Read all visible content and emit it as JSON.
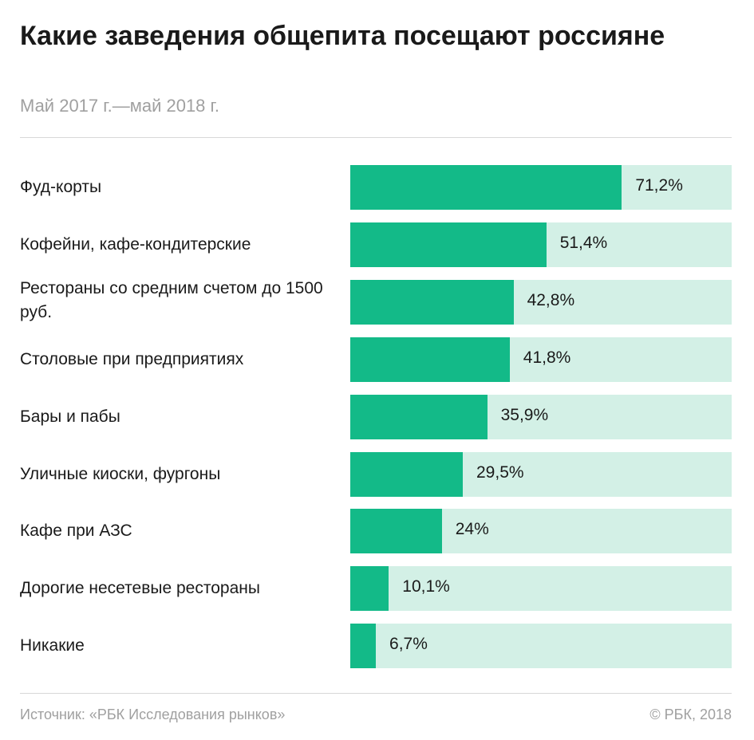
{
  "chart_data": {
    "type": "bar",
    "orientation": "horizontal",
    "title": "Какие заведения общепита посещают россияне",
    "subtitle": "Май 2017 г.—май 2018 г.",
    "categories": [
      "Фуд-корты",
      "Кофейни, кафе-кондитерские",
      "Рестораны со средним счетом до 1500 руб.",
      "Столовые при предприятиях",
      "Бары и пабы",
      "Уличные киоски, фургоны",
      "Кафе при АЗС",
      "Дорогие несетевые рестораны",
      "Никакие"
    ],
    "values": [
      71.2,
      51.4,
      42.8,
      41.8,
      35.9,
      29.5,
      24,
      10.1,
      6.7
    ],
    "value_labels": [
      "71,2%",
      "51,4%",
      "42,8%",
      "41,8%",
      "35,9%",
      "29,5%",
      "24%",
      "10,1%",
      "6,7%"
    ],
    "xlim": [
      0,
      100
    ],
    "colors": {
      "bar": "#13ba88",
      "track": "#d3f0e6"
    }
  },
  "footer": {
    "source": "Источник: «РБК Исследования рынков»",
    "copyright": "© РБК, 2018"
  }
}
